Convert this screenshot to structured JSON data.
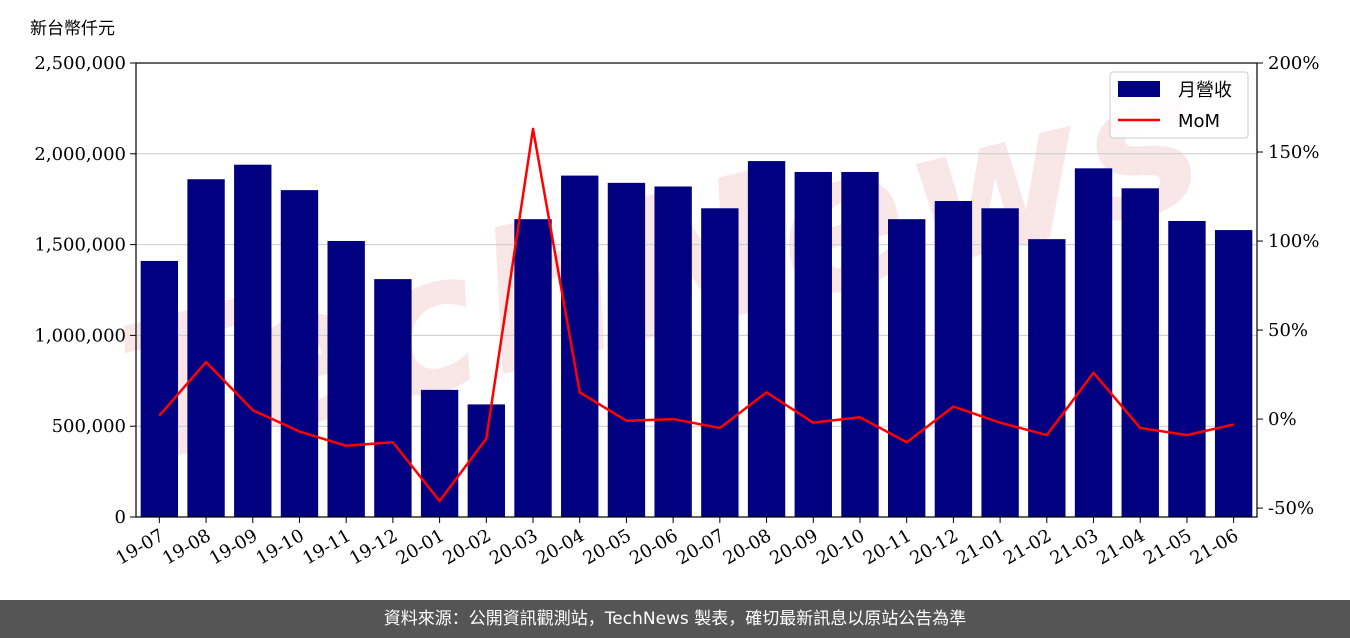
{
  "unit_label": "新台幣仟元",
  "footer": "資料來源：公開資訊觀測站，TechNews 製表，確切最新訊息以原站公告為準",
  "watermark": "TechNews",
  "colors": {
    "bar": "#000080",
    "line": "#ff0000",
    "grid": "#cccccc",
    "footer_bg": "#555555",
    "watermark": "#f2c9cc"
  },
  "chart_data": {
    "type": "bar",
    "categories": [
      "19-07",
      "19-08",
      "19-09",
      "19-10",
      "19-11",
      "19-12",
      "20-01",
      "20-02",
      "20-03",
      "20-04",
      "20-05",
      "20-06",
      "20-07",
      "20-08",
      "20-09",
      "20-10",
      "20-11",
      "20-12",
      "21-01",
      "21-02",
      "21-03",
      "21-04",
      "21-05",
      "21-06"
    ],
    "series": [
      {
        "name": "月營收",
        "type": "bar",
        "axis": "left",
        "values": [
          1410000,
          1860000,
          1940000,
          1800000,
          1520000,
          1310000,
          700000,
          620000,
          1640000,
          1880000,
          1840000,
          1820000,
          1700000,
          1960000,
          1900000,
          1900000,
          1640000,
          1740000,
          1700000,
          1530000,
          1920000,
          1810000,
          1630000,
          1580000
        ]
      },
      {
        "name": "MoM",
        "type": "line",
        "axis": "right",
        "values": [
          2,
          32,
          5,
          -7,
          -15,
          -13,
          -46,
          -11,
          163,
          15,
          -1,
          0,
          -5,
          15,
          -2,
          1,
          -13,
          7,
          -2,
          -9,
          26,
          -5,
          -9,
          -3
        ]
      }
    ],
    "ylim_left": [
      0,
      2500000
    ],
    "yticks_left": [
      "0",
      "500,000",
      "1,000,000",
      "1,500,000",
      "2,000,000",
      "2,500,000"
    ],
    "ylim_right": [
      -55,
      200
    ],
    "yticks_right_values": [
      -50,
      0,
      50,
      100,
      150,
      200
    ],
    "yticks_right": [
      "-50%",
      "0%",
      "50%",
      "100%",
      "150%",
      "200%"
    ],
    "grid": true,
    "legend_position": "top-right"
  }
}
